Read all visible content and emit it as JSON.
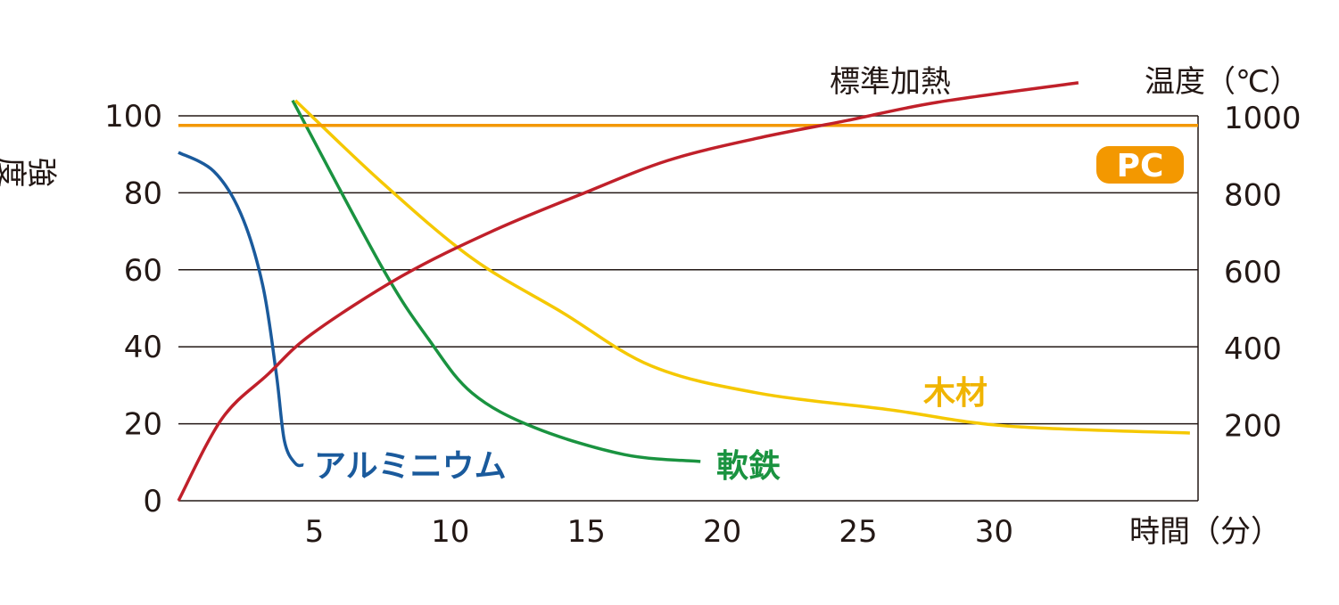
{
  "chart_data": {
    "type": "line",
    "xlabel": "時間（分）",
    "ylabel": "強度低下割合（%）",
    "y2label": "温度（℃）",
    "xlim": [
      0,
      37.5
    ],
    "ylim": [
      0,
      100
    ],
    "y2lim": [
      0,
      1000
    ],
    "x_ticks": [
      5,
      10,
      15,
      20,
      25,
      30
    ],
    "y_ticks": [
      0,
      20,
      40,
      60,
      80,
      100
    ],
    "y2_ticks": [
      200,
      400,
      600,
      800,
      1000
    ],
    "grid": true,
    "series": [
      {
        "name": "アルミニウム",
        "axis": "left",
        "color": "#1a5a9c",
        "x": [
          0,
          1.3,
          2.3,
          3.1,
          3.6,
          3.9,
          4.3,
          4.6
        ],
        "y": [
          90.5,
          85.6,
          74.5,
          56,
          33,
          15.5,
          9.7,
          9.3
        ]
      },
      {
        "name": "軟鉄",
        "axis": "left",
        "color": "#1a9340",
        "x": [
          4.2,
          7.5,
          9.2,
          10.8,
          13.1,
          16.4,
          19.2
        ],
        "y": [
          104,
          60.5,
          42,
          28,
          19,
          12,
          10.2
        ]
      },
      {
        "name": "木材",
        "axis": "left",
        "color": "#f5c800",
        "x": [
          4.3,
          7.5,
          10.8,
          14.1,
          17.4,
          21.3,
          26.2,
          30.5,
          37.2
        ],
        "y": [
          104,
          82.6,
          63,
          49,
          35,
          28,
          23.6,
          19.4,
          17.6
        ]
      },
      {
        "name": "PC",
        "axis": "left",
        "color": "#f39800",
        "x": [
          0,
          37.5
        ],
        "y": [
          97.5,
          97.5
        ]
      },
      {
        "name": "標準加熱",
        "axis": "right",
        "color": "#c0202a",
        "x": [
          0,
          1.6,
          3.3,
          4.9,
          8.2,
          11.5,
          14.8,
          18,
          21.3,
          24.6,
          27.9,
          33.1
        ],
        "y": [
          0,
          213,
          329,
          433,
          583,
          699,
          796,
          884,
          942,
          988,
          1035,
          1086
        ]
      }
    ]
  }
}
